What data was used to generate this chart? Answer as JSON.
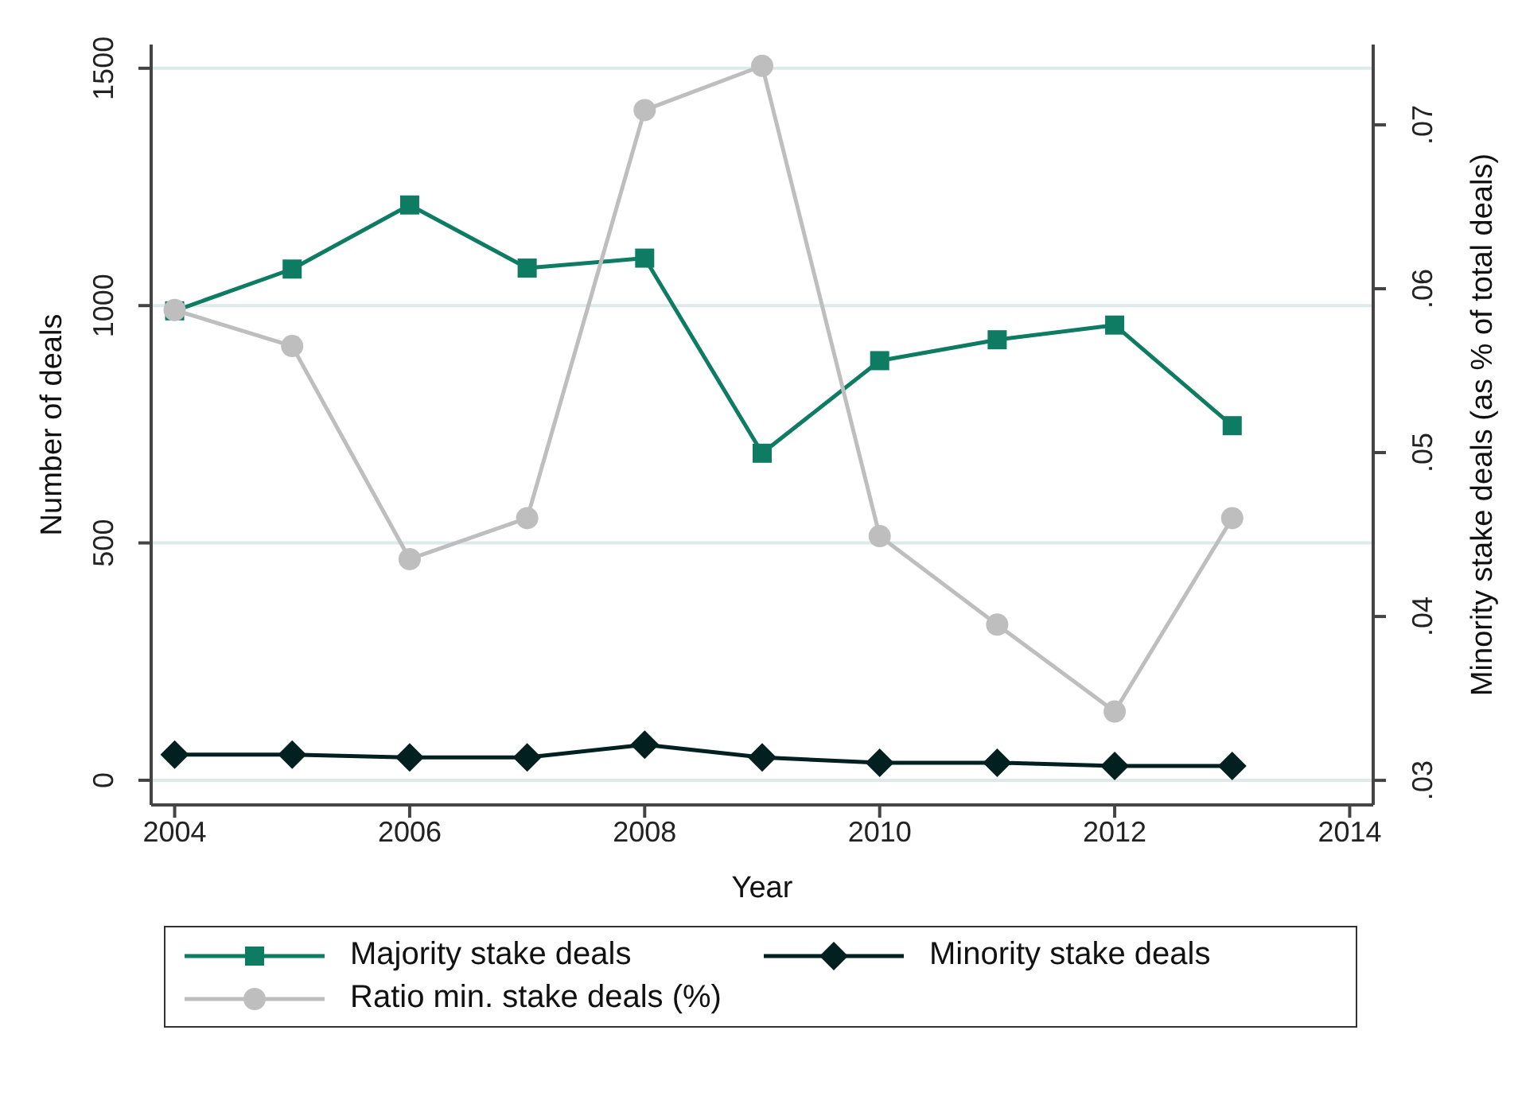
{
  "chart_data": {
    "type": "line",
    "xlabel": "Year",
    "ylabel": "Number of deals",
    "y2label": "Minority stake deals (as % of total deals)",
    "x": [
      2004,
      2005,
      2006,
      2007,
      2008,
      2009,
      2010,
      2011,
      2012,
      2013
    ],
    "series": [
      {
        "name": "Majority stake deals",
        "color": "#0e7b63",
        "marker": "square",
        "values": [
          989,
          1077,
          1212,
          1079,
          1100,
          689,
          884,
          928,
          959,
          747
        ]
      },
      {
        "name": "Minority stake deals",
        "color": "#02201f",
        "marker": "diamond",
        "values": [
          54,
          54,
          48,
          48,
          75,
          48,
          37,
          37,
          30,
          30
        ]
      },
      {
        "name": "Ratio min. stake deals (%)",
        "color": "#bebebe",
        "marker": "circle",
        "axis": "y2",
        "values": [
          0.0587,
          0.0565,
          0.0435,
          0.046,
          0.0709,
          0.0736,
          0.0449,
          0.0395,
          0.0342,
          0.046
        ]
      }
    ],
    "xlim": [
      2003.8,
      2014.2
    ],
    "xticks": [
      2004,
      2006,
      2008,
      2010,
      2012,
      2014
    ],
    "ylim": [
      -52,
      1550
    ],
    "yticks": [
      0,
      500,
      1000,
      1500
    ],
    "y2lim": [
      0.0285,
      0.0749
    ],
    "y2ticks": [
      {
        "value": 0.03,
        "label": ".03"
      },
      {
        "value": 0.04,
        "label": ".04"
      },
      {
        "value": 0.05,
        "label": ".05"
      },
      {
        "value": 0.06,
        "label": ".06"
      },
      {
        "value": 0.07,
        "label": ".07"
      }
    ],
    "grid": "y",
    "legend": "bottom"
  }
}
